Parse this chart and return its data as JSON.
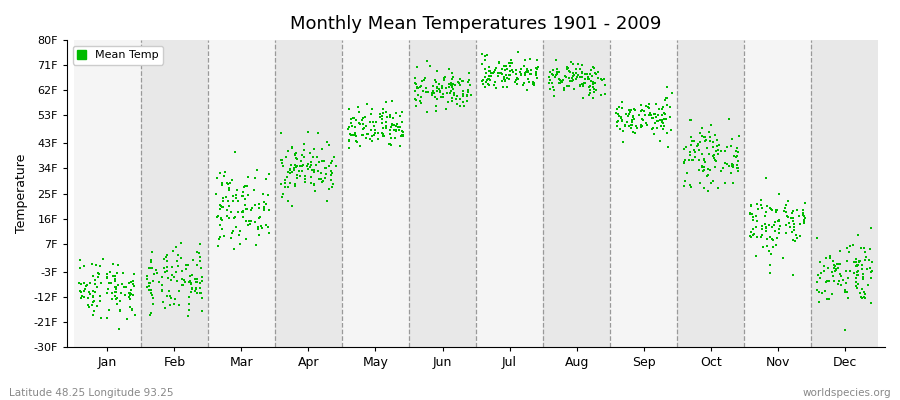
{
  "title": "Monthly Mean Temperatures 1901 - 2009",
  "ylabel": "Temperature",
  "xlabel_bottom_left": "Latitude 48.25 Longitude 93.25",
  "xlabel_bottom_right": "worldspecies.org",
  "legend_label": "Mean Temp",
  "yticks": [
    -30,
    -21,
    -12,
    -3,
    7,
    16,
    25,
    34,
    43,
    53,
    62,
    71,
    80
  ],
  "ytick_labels": [
    "-30F",
    "-21F",
    "-12F",
    "-3F",
    "7F",
    "16F",
    "25F",
    "34F",
    "43F",
    "53F",
    "62F",
    "71F",
    "80F"
  ],
  "months": [
    "Jan",
    "Feb",
    "Mar",
    "Apr",
    "May",
    "Jun",
    "Jul",
    "Aug",
    "Sep",
    "Oct",
    "Nov",
    "Dec"
  ],
  "month_centers": [
    0.5,
    1.5,
    2.5,
    3.5,
    4.5,
    5.5,
    6.5,
    7.5,
    8.5,
    9.5,
    10.5,
    11.5
  ],
  "month_dividers": [
    0,
    1,
    2,
    3,
    4,
    5,
    6,
    7,
    8,
    9,
    10,
    11,
    12
  ],
  "dot_color": "#00bb00",
  "bg_color_light": "#f5f5f5",
  "bg_color_dark": "#e8e8e8",
  "scatter_marker": "s",
  "scatter_size": 4,
  "monthly_mean_temps_F": {
    "Jan": -9.0,
    "Feb": -7.0,
    "Mar": 20.0,
    "Apr": 34.0,
    "May": 48.0,
    "Jun": 62.0,
    "Jul": 68.0,
    "Aug": 66.0,
    "Sep": 52.0,
    "Oct": 38.0,
    "Nov": 14.0,
    "Dec": -3.0
  },
  "monthly_std_F": {
    "Jan": 5.5,
    "Feb": 6.0,
    "Mar": 6.5,
    "Apr": 5.0,
    "May": 4.0,
    "Jun": 3.5,
    "Jul": 3.0,
    "Aug": 3.0,
    "Sep": 3.5,
    "Oct": 5.0,
    "Nov": 6.0,
    "Dec": 6.0
  },
  "n_years": 109,
  "xlim": [
    -0.1,
    12.1
  ],
  "ylim_min": -30,
  "ylim_max": 80
}
